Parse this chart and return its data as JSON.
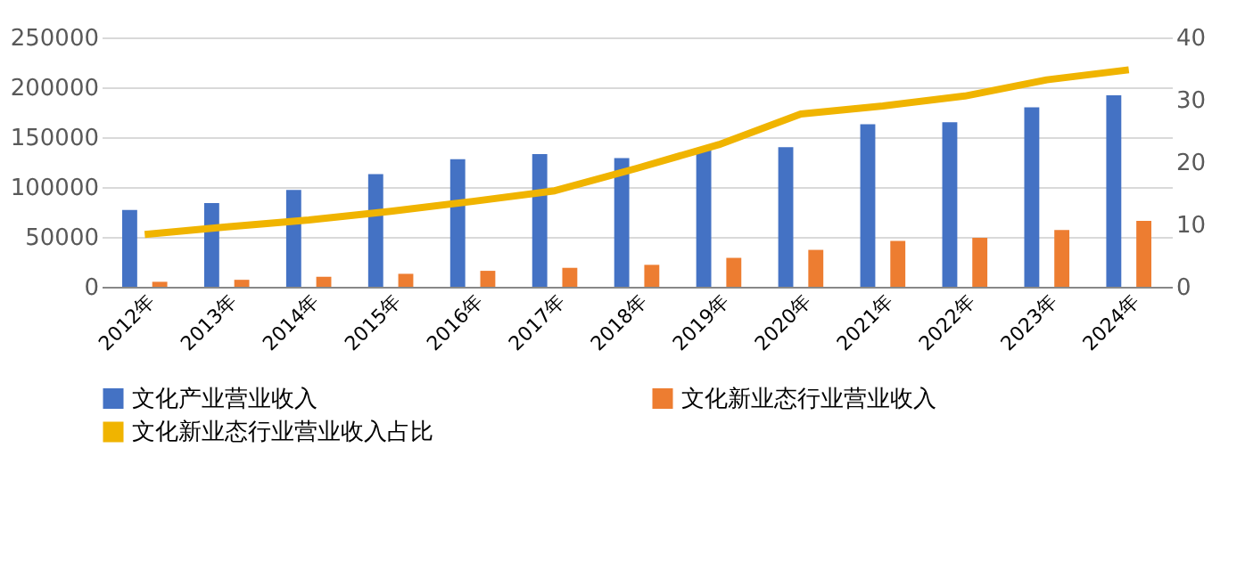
{
  "chart_data": {
    "type": "bar",
    "categories": [
      "2012年",
      "2013年",
      "2014年",
      "2015年",
      "2016年",
      "2017年",
      "2018年",
      "2019年",
      "2020年",
      "2021年",
      "2022年",
      "2023年",
      "2024年"
    ],
    "series": [
      {
        "name": "文化产业营业收入",
        "color": "#4472c4",
        "values": [
          77000,
          84000,
          97000,
          113000,
          128000,
          133000,
          129000,
          137000,
          140000,
          163000,
          165000,
          180000,
          192000
        ]
      },
      {
        "name": "文化新业态行业营业收入",
        "color": "#ed7d31",
        "values": [
          5000,
          7000,
          10000,
          13000,
          16000,
          19000,
          22000,
          29000,
          37000,
          46000,
          49000,
          57000,
          66000
        ]
      },
      {
        "name": "文化新业态行业营业收入占比",
        "color": "#f0b400",
        "type": "line",
        "axis": "y2",
        "values": [
          8.4,
          9.6,
          10.7,
          12.1,
          13.7,
          15.4,
          19.0,
          22.8,
          27.7,
          29.0,
          30.6,
          33.2,
          34.8
        ]
      }
    ],
    "ylim": [
      0,
      250000
    ],
    "yticks": [
      0,
      50000,
      100000,
      150000,
      200000,
      250000
    ],
    "y2lim": [
      0,
      40
    ],
    "y2ticks": [
      0,
      10,
      20,
      30,
      40
    ],
    "grid": "y",
    "legend": "bottom",
    "marker": "none",
    "line_style": "solid"
  }
}
